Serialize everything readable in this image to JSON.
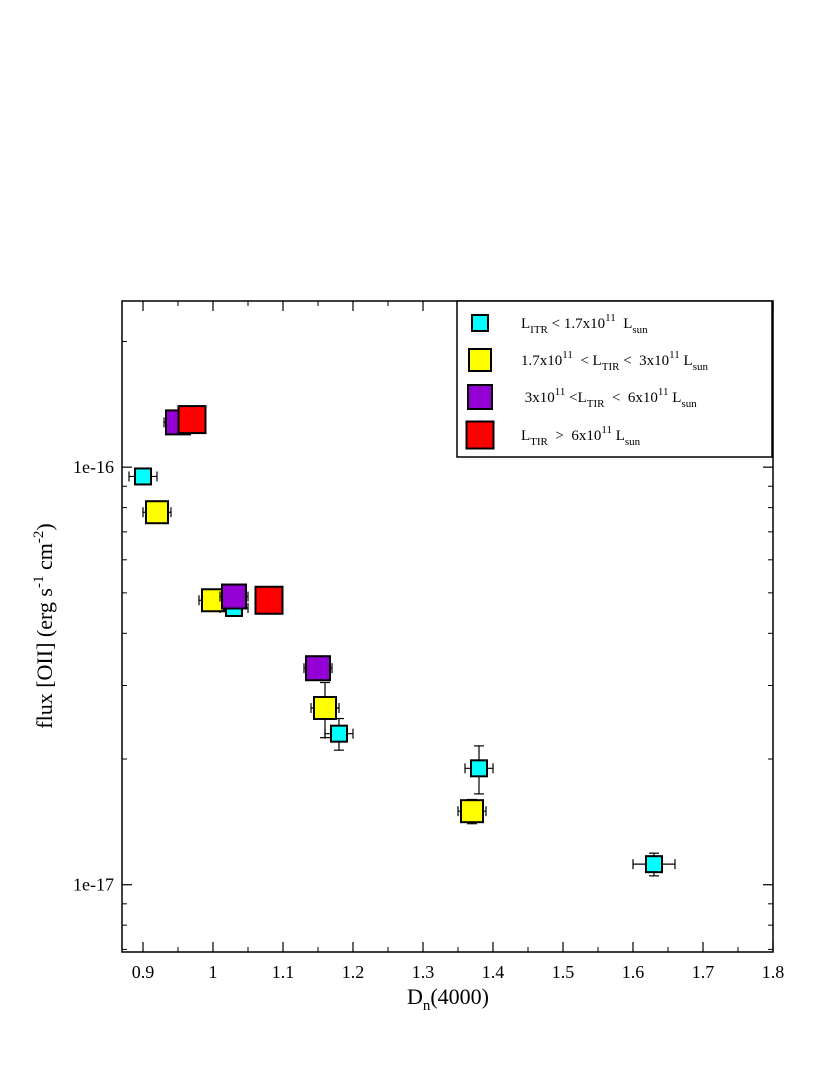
{
  "chart_data": {
    "type": "scatter",
    "xlabel": {
      "base": "D",
      "sub": "n",
      "rest": "(4000)"
    },
    "ylabel": {
      "pre": "flux [OII]  (erg s",
      "sup1": "-1",
      "mid": " cm",
      "sup2": "-2",
      "post": ")"
    },
    "xlim": [
      0.87,
      1.8
    ],
    "ylim": [
      6.9e-18,
      2.5e-16
    ],
    "yscale": "log",
    "grid": false,
    "legend_position": "top-right",
    "x_ticks": [
      {
        "value": 0.9,
        "label": "0.9"
      },
      {
        "value": 1.0,
        "label": "1"
      },
      {
        "value": 1.1,
        "label": "1.1"
      },
      {
        "value": 1.2,
        "label": "1.2"
      },
      {
        "value": 1.3,
        "label": "1.3"
      },
      {
        "value": 1.4,
        "label": "1.4"
      },
      {
        "value": 1.5,
        "label": "1.5"
      },
      {
        "value": 1.6,
        "label": "1.6"
      },
      {
        "value": 1.7,
        "label": "1.7"
      },
      {
        "value": 1.8,
        "label": "1.8"
      }
    ],
    "y_ticks": [
      {
        "value": 1e-16,
        "label": "1e-16"
      },
      {
        "value": 1e-17,
        "label": "1e-17"
      }
    ],
    "series": [
      {
        "legend": {
          "parts": [
            {
              "t": "L"
            },
            {
              "t": "ITR",
              "s": "sub"
            },
            {
              "t": " < 1.7x10"
            },
            {
              "t": "11",
              "s": "sup"
            },
            {
              "t": "  L"
            },
            {
              "t": "sun",
              "s": "sub"
            }
          ]
        },
        "color": "#00ffff",
        "marker_size": 16,
        "points": [
          {
            "x": 0.9,
            "y": 9.5e-17,
            "xerr": 0.02,
            "yerr": 2e-18
          },
          {
            "x": 1.03,
            "y": 4.6e-17,
            "xerr": 0.02,
            "yerr": 2e-18
          },
          {
            "x": 1.18,
            "y": 2.3e-17,
            "xerr": 0.02,
            "yerr": 2e-18
          },
          {
            "x": 1.38,
            "y": 1.9e-17,
            "xerr": 0.02,
            "yerr": 2.5e-18
          },
          {
            "x": 1.63,
            "y": 1.12e-17,
            "xerr": 0.03,
            "yerr": 7e-19
          }
        ]
      },
      {
        "legend": {
          "parts": [
            {
              "t": "1.7x10"
            },
            {
              "t": "11",
              "s": "sup"
            },
            {
              "t": "  < L"
            },
            {
              "t": "TIR",
              "s": "sub"
            },
            {
              "t": " <  3x10"
            },
            {
              "t": "11",
              "s": "sup"
            },
            {
              "t": " L"
            },
            {
              "t": "sun",
              "s": "sub"
            }
          ]
        },
        "color": "#ffff00",
        "marker_size": 22,
        "points": [
          {
            "x": 0.92,
            "y": 7.8e-17,
            "xerr": 0.02,
            "yerr": 1e-18
          },
          {
            "x": 1.0,
            "y": 4.8e-17,
            "xerr": 0.02,
            "yerr": 2e-18
          },
          {
            "x": 1.16,
            "y": 2.65e-17,
            "xerr": 0.02,
            "yerr": 4e-18
          },
          {
            "x": 1.37,
            "y": 1.5e-17,
            "xerr": 0.02,
            "yerr": 1e-18
          }
        ]
      },
      {
        "legend": {
          "parts": [
            {
              "t": " 3x10"
            },
            {
              "t": "11",
              "s": "sup"
            },
            {
              "t": " <L"
            },
            {
              "t": "TIR",
              "s": "sub"
            },
            {
              "t": "  <  6x10"
            },
            {
              "t": "11",
              "s": "sup"
            },
            {
              "t": " L"
            },
            {
              "t": "sun",
              "s": "sub"
            }
          ]
        },
        "color": "#9400d3",
        "marker_size": 24,
        "points": [
          {
            "x": 0.95,
            "y": 1.28e-16,
            "xerr": 0.02,
            "yerr": 5e-18
          },
          {
            "x": 1.03,
            "y": 4.9e-17,
            "xerr": 0.02,
            "yerr": 3e-18
          },
          {
            "x": 1.15,
            "y": 3.3e-17,
            "xerr": 0.02,
            "yerr": 1e-18
          }
        ]
      },
      {
        "legend": {
          "parts": [
            {
              "t": "L"
            },
            {
              "t": "TIR",
              "s": "sub"
            },
            {
              "t": "  >  6x10"
            },
            {
              "t": "11",
              "s": "sup"
            },
            {
              "t": " L"
            },
            {
              "t": "sun",
              "s": "sub"
            }
          ]
        },
        "color": "#ff0000",
        "marker_size": 27,
        "points": [
          {
            "x": 0.97,
            "y": 1.3e-16,
            "xerr": 0.0,
            "yerr": 0.0
          },
          {
            "x": 1.08,
            "y": 4.8e-17,
            "xerr": 0.0,
            "yerr": 0.0
          }
        ]
      }
    ]
  }
}
